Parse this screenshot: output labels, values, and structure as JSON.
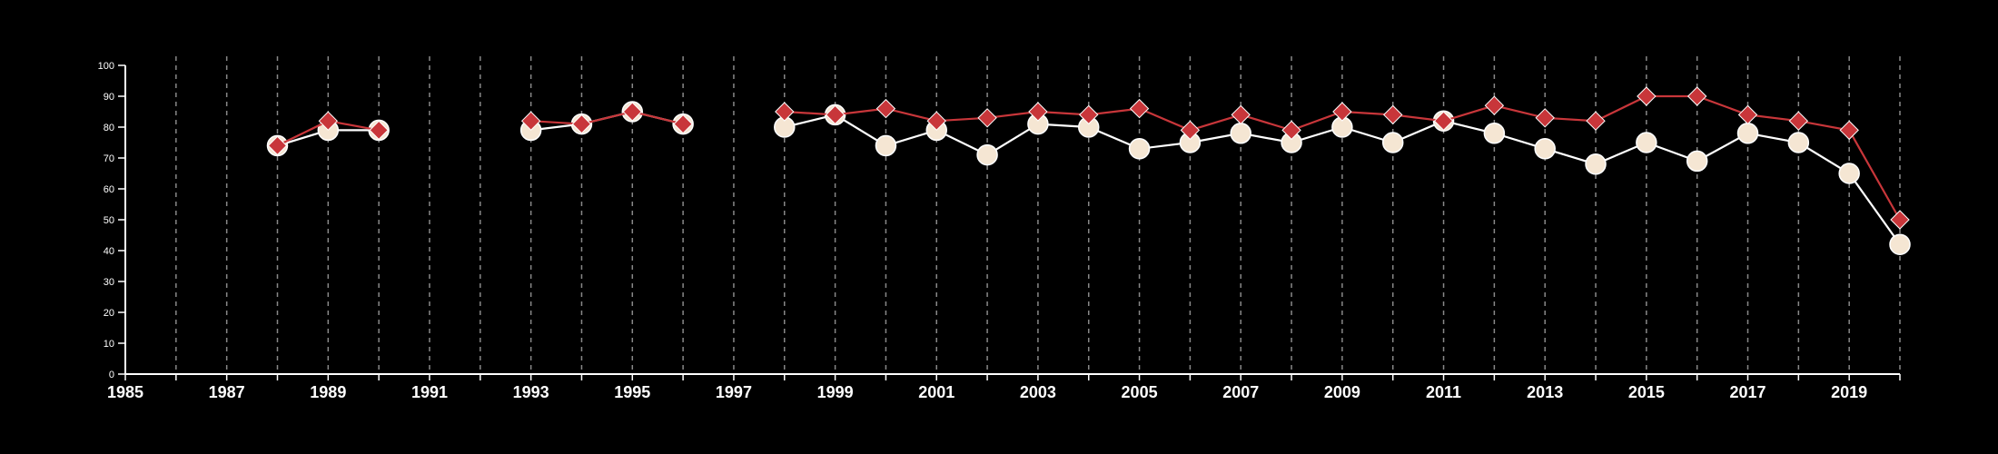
{
  "chart_data": {
    "type": "line",
    "title": "",
    "xlabel": "",
    "ylabel": "",
    "xlim": [
      1985,
      2020
    ],
    "ylim": [
      0,
      100
    ],
    "x_ticks": [
      1985,
      1987,
      1989,
      1991,
      1993,
      1995,
      1997,
      1999,
      2001,
      2003,
      2005,
      2007,
      2009,
      2011,
      2013,
      2015,
      2017,
      2019
    ],
    "y_ticks": [
      0,
      10,
      20,
      30,
      40,
      50,
      60,
      70,
      80,
      90,
      100
    ],
    "grid": "vertical dashed lines at every year",
    "legend": "none",
    "x": [
      1985,
      1986,
      1987,
      1988,
      1989,
      1990,
      1991,
      1992,
      1993,
      1994,
      1995,
      1996,
      1997,
      1998,
      1999,
      2000,
      2001,
      2002,
      2003,
      2004,
      2005,
      2006,
      2007,
      2008,
      2009,
      2010,
      2011,
      2012,
      2013,
      2014,
      2015,
      2016,
      2017,
      2018,
      2019,
      2020
    ],
    "series": [
      {
        "marker": "circle",
        "color": "#ffffff",
        "marker_fill": "#f5e6d3",
        "values": [
          null,
          null,
          null,
          74,
          79,
          79,
          null,
          null,
          79,
          81,
          85,
          81,
          null,
          80,
          84,
          74,
          79,
          71,
          81,
          80,
          73,
          75,
          78,
          75,
          80,
          75,
          82,
          78,
          73,
          68,
          75,
          69,
          78,
          75,
          65,
          42
        ]
      },
      {
        "marker": "diamond",
        "color": "#c8363a",
        "marker_fill": "#c8363a",
        "values": [
          null,
          null,
          null,
          74,
          82,
          79,
          null,
          null,
          82,
          81,
          85,
          81,
          null,
          85,
          84,
          86,
          82,
          83,
          85,
          84,
          86,
          79,
          84,
          79,
          85,
          84,
          82,
          87,
          83,
          82,
          90,
          90,
          84,
          82,
          79,
          50
        ]
      }
    ]
  }
}
